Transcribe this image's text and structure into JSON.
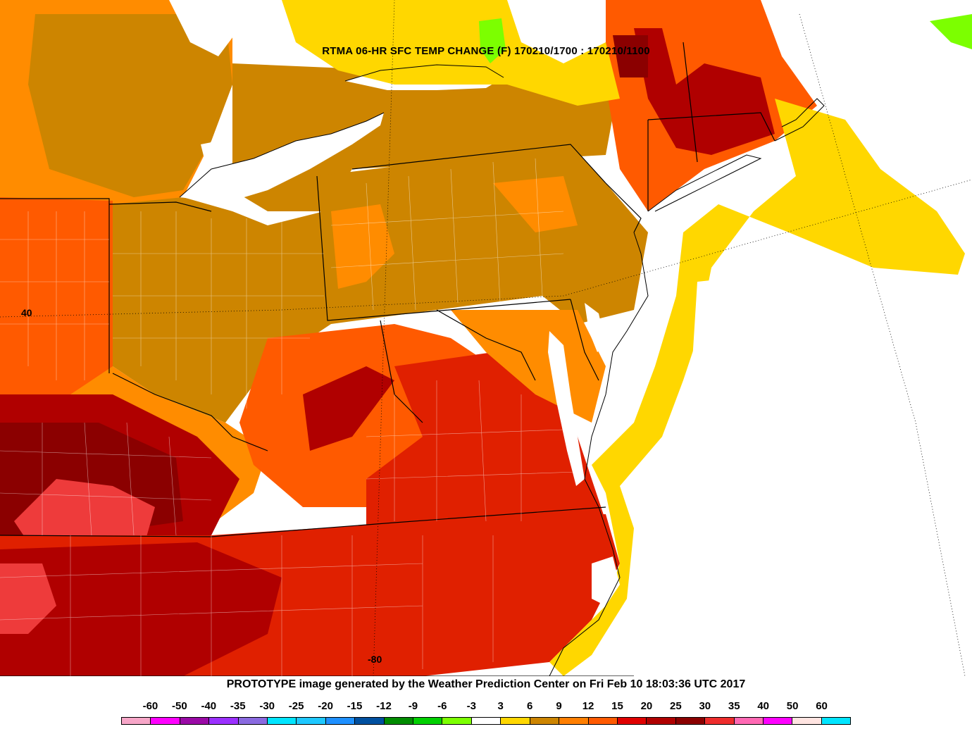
{
  "map": {
    "title": "RTMA 06-HR SFC TEMP CHANGE (F) 170210/1700 : 170210/1100",
    "latitude_label": "40",
    "longitude_label": "-80"
  },
  "footer": {
    "text": "PROTOTYPE image generated by the Weather Prediction Center on Fri Feb 10 18:03:36 UTC 2017"
  },
  "legend": {
    "labels": [
      "-60",
      "-50",
      "-40",
      "-35",
      "-30",
      "-25",
      "-20",
      "-15",
      "-12",
      "-9",
      "-6",
      "-3",
      "3",
      "6",
      "9",
      "12",
      "15",
      "20",
      "25",
      "30",
      "35",
      "40",
      "50",
      "60"
    ],
    "colors": [
      "#f7a6c8",
      "#ff00ff",
      "#9a0aa6",
      "#9b30ff",
      "#8a6ae0",
      "#00e5ff",
      "#1ec8ff",
      "#1e90ff",
      "#0050a0",
      "#008c00",
      "#00d000",
      "#7cff00",
      "#ffffff",
      "#ffd700",
      "#cd8500",
      "#ff7f00",
      "#ff5a00",
      "#e00000",
      "#b00000",
      "#8b0000",
      "#ee2c2c",
      "#ff69b4",
      "#ff00ff",
      "#ffe4e1",
      "#00e5ff"
    ]
  },
  "palette": {
    "water": "#ffffff",
    "change_3_6": "#ffd700",
    "change_6_9": "#cd8500",
    "change_9_12": "#ff8c00",
    "change_12_15": "#ff5a00",
    "change_15_20": "#e02000",
    "change_20_25": "#b00000",
    "change_25_30": "#8b0000",
    "change_30_35": "#ee3b3b",
    "change_neg_3": "#7cff00"
  }
}
